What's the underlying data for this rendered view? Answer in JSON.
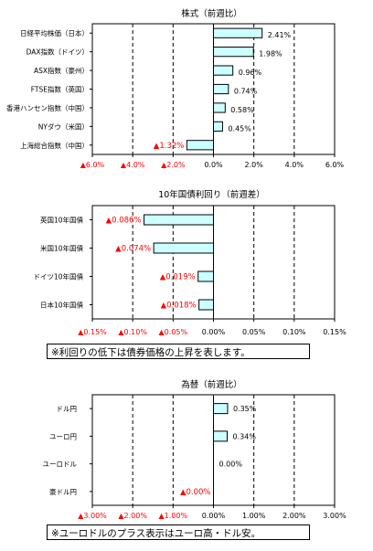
{
  "colors": {
    "bar_fill": "#ccffff",
    "bar_stroke": "#000000",
    "negative_text": "#ff0000",
    "positive_text": "#000000"
  },
  "chart_data": [
    {
      "type": "bar",
      "orientation": "horizontal",
      "title": "株式（前週比）",
      "categories": [
        "日経平均株価（日本）",
        "DAX指数（ドイツ）",
        "ASX指数（豪州）",
        "FTSE指数（英国）",
        "香港ハンセン指数（中国）",
        "NYダウ（米国）",
        "上海総合指数（中国）"
      ],
      "values": [
        2.41,
        1.98,
        0.96,
        0.74,
        0.58,
        0.45,
        -1.32
      ],
      "value_labels": [
        "2.41%",
        "1.98%",
        "0.96%",
        "0.74%",
        "0.58%",
        "0.45%",
        "▲1.32%"
      ],
      "xlim": [
        -6,
        6
      ],
      "ticks": [
        -6,
        -4,
        -2,
        0,
        2,
        4,
        6
      ],
      "tick_labels": [
        "▲6.0%",
        "▲4.0%",
        "▲2.0%",
        "0.0%",
        "2.0%",
        "4.0%",
        "6.0%"
      ],
      "grid": "vertical-dashed",
      "legend": "none"
    },
    {
      "type": "bar",
      "orientation": "horizontal",
      "title": "10年国債利回り（前週差）",
      "categories": [
        "英国10年国債",
        "米国10年国債",
        "ドイツ10年国債",
        "日本10年国債"
      ],
      "values": [
        -0.086,
        -0.074,
        -0.019,
        -0.018
      ],
      "value_labels": [
        "▲0.086%",
        "▲0.074%",
        "▲0.019%",
        "▲0.018%"
      ],
      "xlim": [
        -0.15,
        0.15
      ],
      "ticks": [
        -0.15,
        -0.1,
        -0.05,
        0,
        0.05,
        0.1,
        0.15
      ],
      "tick_labels": [
        "▲0.15%",
        "▲0.10%",
        "▲0.05%",
        "0.00%",
        "0.05%",
        "0.10%",
        "0.15%"
      ],
      "grid": "vertical-dashed",
      "legend": "none",
      "note": "※利回りの低下は債券価格の上昇を表します。"
    },
    {
      "type": "bar",
      "orientation": "horizontal",
      "title": "為替（前週比）",
      "categories": [
        "ドル円",
        "ユーロ円",
        "ユーロドル",
        "豪ドル円"
      ],
      "values": [
        0.35,
        0.34,
        0.0,
        -0.0
      ],
      "value_labels": [
        "0.35%",
        "0.34%",
        "0.00%",
        "▲0.00%"
      ],
      "xlim": [
        -3,
        3
      ],
      "ticks": [
        -3,
        -2,
        -1,
        0,
        1,
        2,
        3
      ],
      "tick_labels": [
        "▲3.00%",
        "▲2.00%",
        "▲1.00%",
        "0.00%",
        "1.00%",
        "2.00%",
        "3.00%"
      ],
      "grid": "vertical-dashed",
      "legend": "none",
      "note": "※ユーロドルのプラス表示はユーロ高・ドル安。"
    }
  ]
}
